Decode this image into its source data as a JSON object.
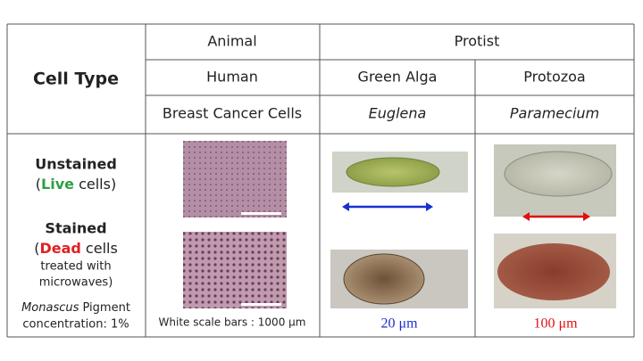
{
  "table": {
    "header": {
      "label": "Cell Type",
      "kingdoms": [
        "Animal",
        "Protist"
      ],
      "groups": [
        "Human",
        "Green Alga",
        "Protozoa"
      ],
      "species": [
        "Breast Cancer Cells",
        "Euglena",
        "Paramecium"
      ]
    },
    "rows": [
      {
        "title": "Unstained",
        "open": "(",
        "status": "Live",
        "rest": " cells)"
      },
      {
        "title": "Stained",
        "open": "(",
        "status": "Dead",
        "rest": " cells",
        "lines": [
          "treated with",
          "microwaves)"
        ]
      }
    ],
    "footnote": {
      "italic": "Monascus",
      "text": " Pigment",
      "line2": "concentration: 1%"
    },
    "scale_notes": [
      "White scale bars : 1000 μm",
      "20 μm",
      "100 μm"
    ]
  }
}
